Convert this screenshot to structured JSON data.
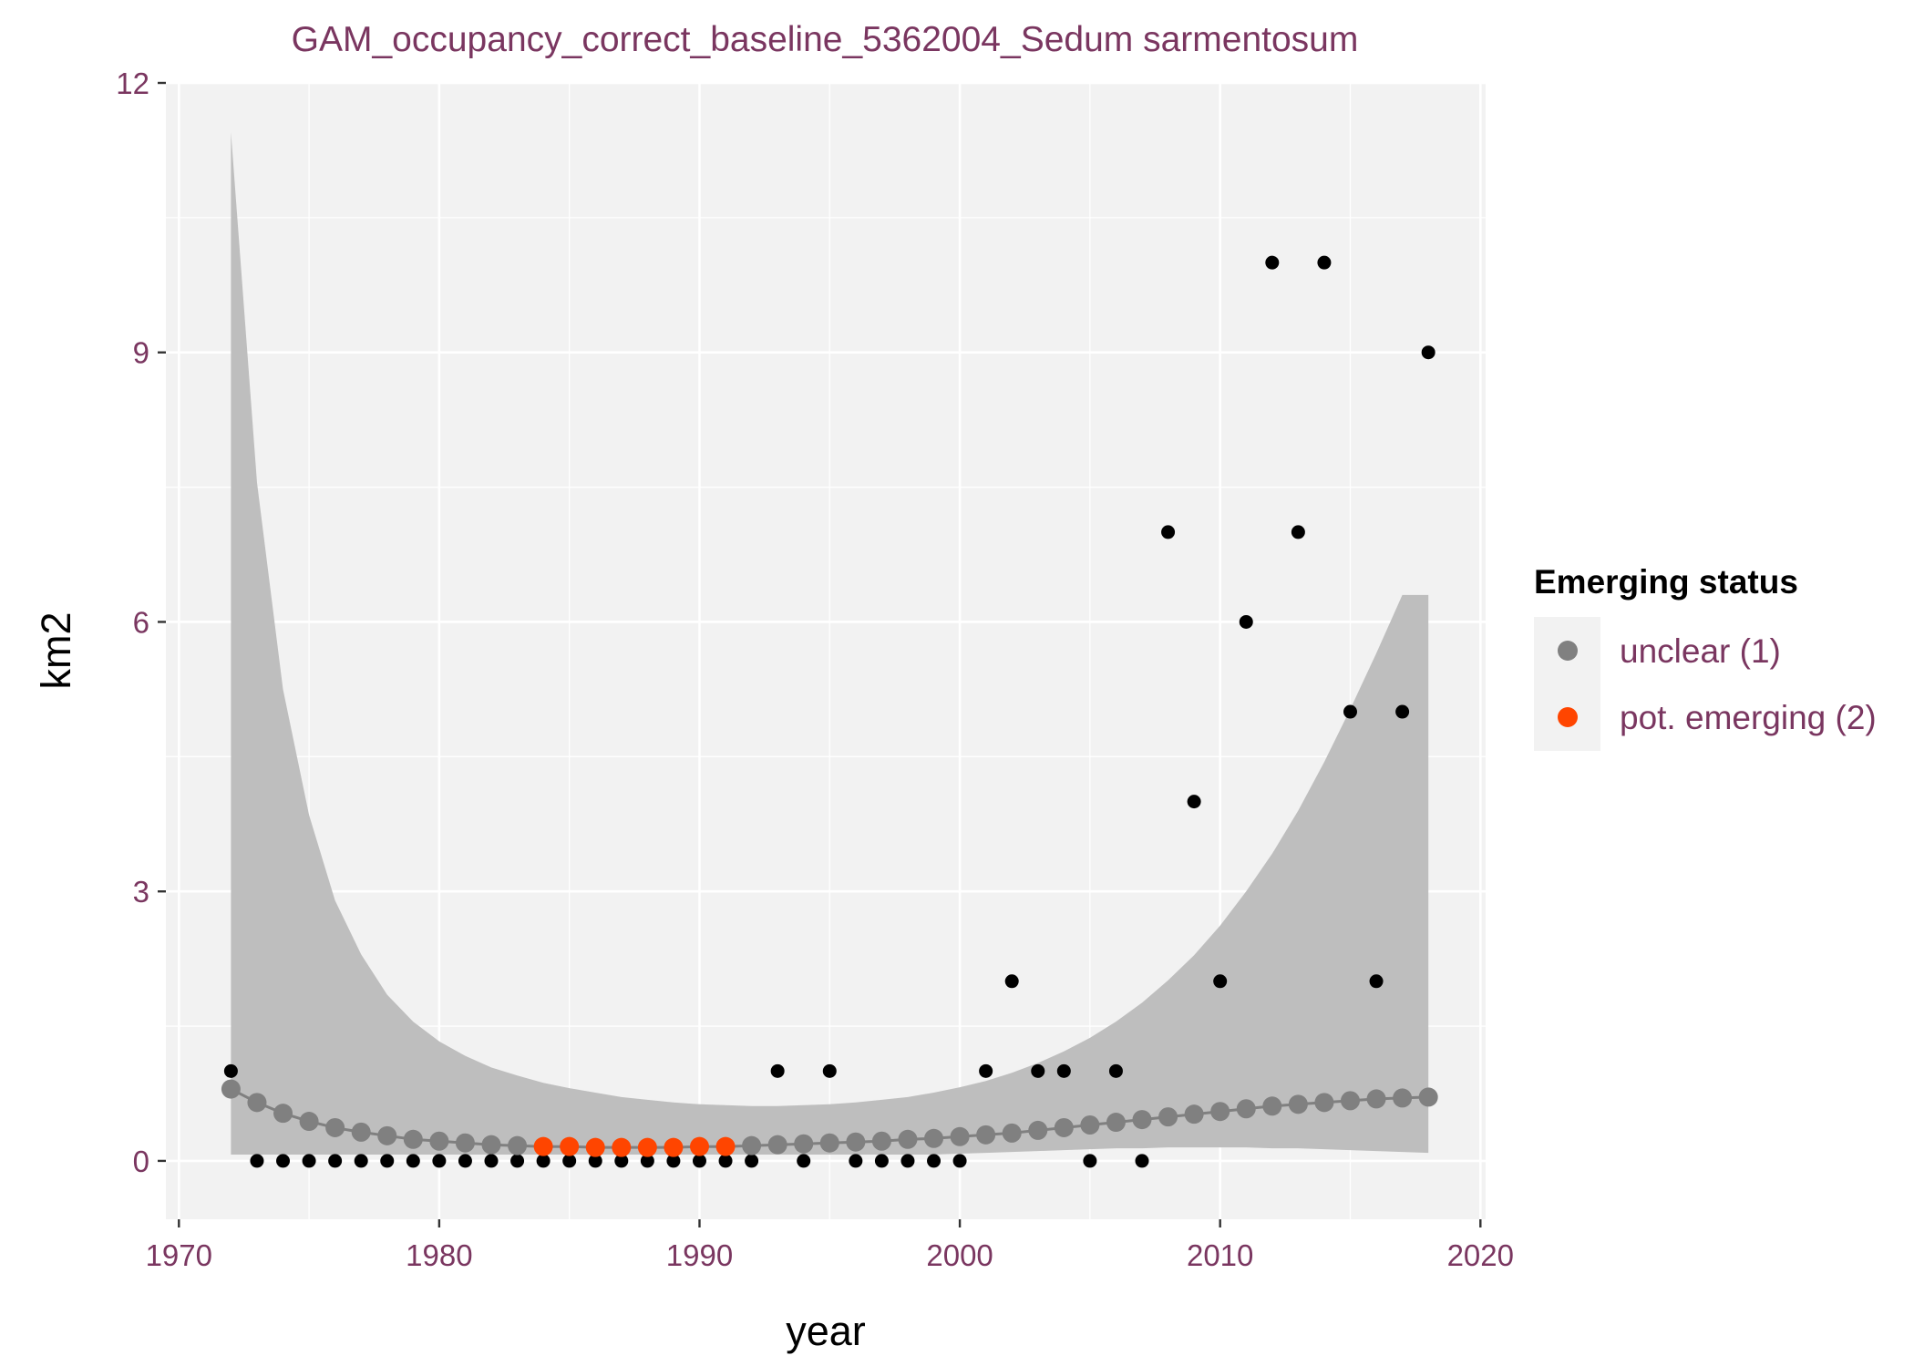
{
  "chart_data": {
    "type": "scatter",
    "title": "GAM_occupancy_correct_baseline_5362004_Sedum sarmentosum",
    "xlabel": "year",
    "ylabel": "km2",
    "xlim": [
      1969.5,
      2020.2
    ],
    "ylim": [
      -0.65,
      12.0
    ],
    "x_ticks": [
      1970,
      1980,
      1990,
      2000,
      2010,
      2020
    ],
    "x_tick_labels": [
      "1970",
      "1980",
      "1990",
      "2000",
      "2010",
      "2020"
    ],
    "y_ticks": [
      0,
      3,
      6,
      9,
      12
    ],
    "y_tick_labels": [
      "0",
      "3",
      "6",
      "9",
      "12"
    ],
    "grid": true,
    "legend": {
      "title": "Emerging status",
      "position": "right",
      "entries": [
        {
          "label": "unclear (1)",
          "color": "#808080"
        },
        {
          "label": "pot. emerging (2)",
          "color": "#FF4500"
        }
      ]
    },
    "colors": {
      "panel": "#F2F2F2",
      "grid": "#FFFFFF",
      "ribbon": "#BEBEBE",
      "observed": "#000000",
      "unclear": "#808080",
      "emerging": "#FF4500",
      "text_accent": "#7A3660"
    },
    "observed": {
      "x": [
        1972,
        1973,
        1974,
        1975,
        1976,
        1977,
        1978,
        1979,
        1980,
        1981,
        1982,
        1983,
        1984,
        1985,
        1986,
        1987,
        1988,
        1989,
        1990,
        1991,
        1992,
        1993,
        1994,
        1995,
        1996,
        1997,
        1998,
        1999,
        2000,
        2001,
        2002,
        2003,
        2004,
        2005,
        2006,
        2007,
        2008,
        2009,
        2010,
        2011,
        2012,
        2013,
        2014,
        2015,
        2016,
        2017,
        2018
      ],
      "y": [
        1,
        0,
        0,
        0,
        0,
        0,
        0,
        0,
        0,
        0,
        0,
        0,
        0,
        0,
        0,
        0,
        0,
        0,
        0,
        0,
        0,
        1,
        0,
        1,
        0,
        0,
        0,
        0,
        0,
        1,
        2,
        1,
        1,
        0,
        1,
        0,
        7,
        4,
        2,
        6,
        10,
        7,
        10,
        5,
        2,
        5,
        9
      ]
    },
    "fit": {
      "x": [
        1972,
        1973,
        1974,
        1975,
        1976,
        1977,
        1978,
        1979,
        1980,
        1981,
        1982,
        1983,
        1984,
        1985,
        1986,
        1987,
        1988,
        1989,
        1990,
        1991,
        1992,
        1993,
        1994,
        1995,
        1996,
        1997,
        1998,
        1999,
        2000,
        2001,
        2002,
        2003,
        2004,
        2005,
        2006,
        2007,
        2008,
        2009,
        2010,
        2011,
        2012,
        2013,
        2014,
        2015,
        2016,
        2017,
        2018
      ],
      "y": [
        0.8,
        0.65,
        0.53,
        0.44,
        0.37,
        0.32,
        0.28,
        0.24,
        0.22,
        0.2,
        0.18,
        0.17,
        0.16,
        0.16,
        0.15,
        0.15,
        0.15,
        0.15,
        0.16,
        0.16,
        0.17,
        0.18,
        0.19,
        0.2,
        0.21,
        0.22,
        0.24,
        0.25,
        0.27,
        0.29,
        0.31,
        0.34,
        0.37,
        0.4,
        0.43,
        0.46,
        0.49,
        0.52,
        0.55,
        0.58,
        0.61,
        0.63,
        0.65,
        0.67,
        0.69,
        0.7,
        0.71
      ],
      "lower": [
        0.07,
        0.07,
        0.07,
        0.07,
        0.07,
        0.07,
        0.07,
        0.07,
        0.07,
        0.07,
        0.07,
        0.07,
        0.07,
        0.07,
        0.07,
        0.07,
        0.07,
        0.07,
        0.07,
        0.07,
        0.07,
        0.07,
        0.07,
        0.07,
        0.07,
        0.07,
        0.07,
        0.07,
        0.08,
        0.09,
        0.1,
        0.11,
        0.12,
        0.13,
        0.14,
        0.14,
        0.15,
        0.15,
        0.15,
        0.15,
        0.14,
        0.14,
        0.13,
        0.12,
        0.11,
        0.1,
        0.09
      ],
      "upper": [
        11.45,
        7.55,
        5.25,
        3.85,
        2.9,
        2.3,
        1.85,
        1.55,
        1.33,
        1.17,
        1.04,
        0.95,
        0.87,
        0.81,
        0.76,
        0.71,
        0.68,
        0.65,
        0.63,
        0.62,
        0.61,
        0.61,
        0.62,
        0.63,
        0.65,
        0.68,
        0.71,
        0.76,
        0.82,
        0.89,
        0.98,
        1.09,
        1.22,
        1.37,
        1.55,
        1.76,
        2.01,
        2.29,
        2.62,
        3.0,
        3.42,
        3.9,
        4.44,
        5.03,
        5.65,
        6.3,
        6.3
      ],
      "status": [
        1,
        1,
        1,
        1,
        1,
        1,
        1,
        1,
        1,
        1,
        1,
        1,
        2,
        2,
        2,
        2,
        2,
        2,
        2,
        2,
        1,
        1,
        1,
        1,
        1,
        1,
        1,
        1,
        1,
        1,
        1,
        1,
        1,
        1,
        1,
        1,
        1,
        1,
        1,
        1,
        1,
        1,
        1,
        1,
        1,
        1,
        1
      ]
    }
  }
}
